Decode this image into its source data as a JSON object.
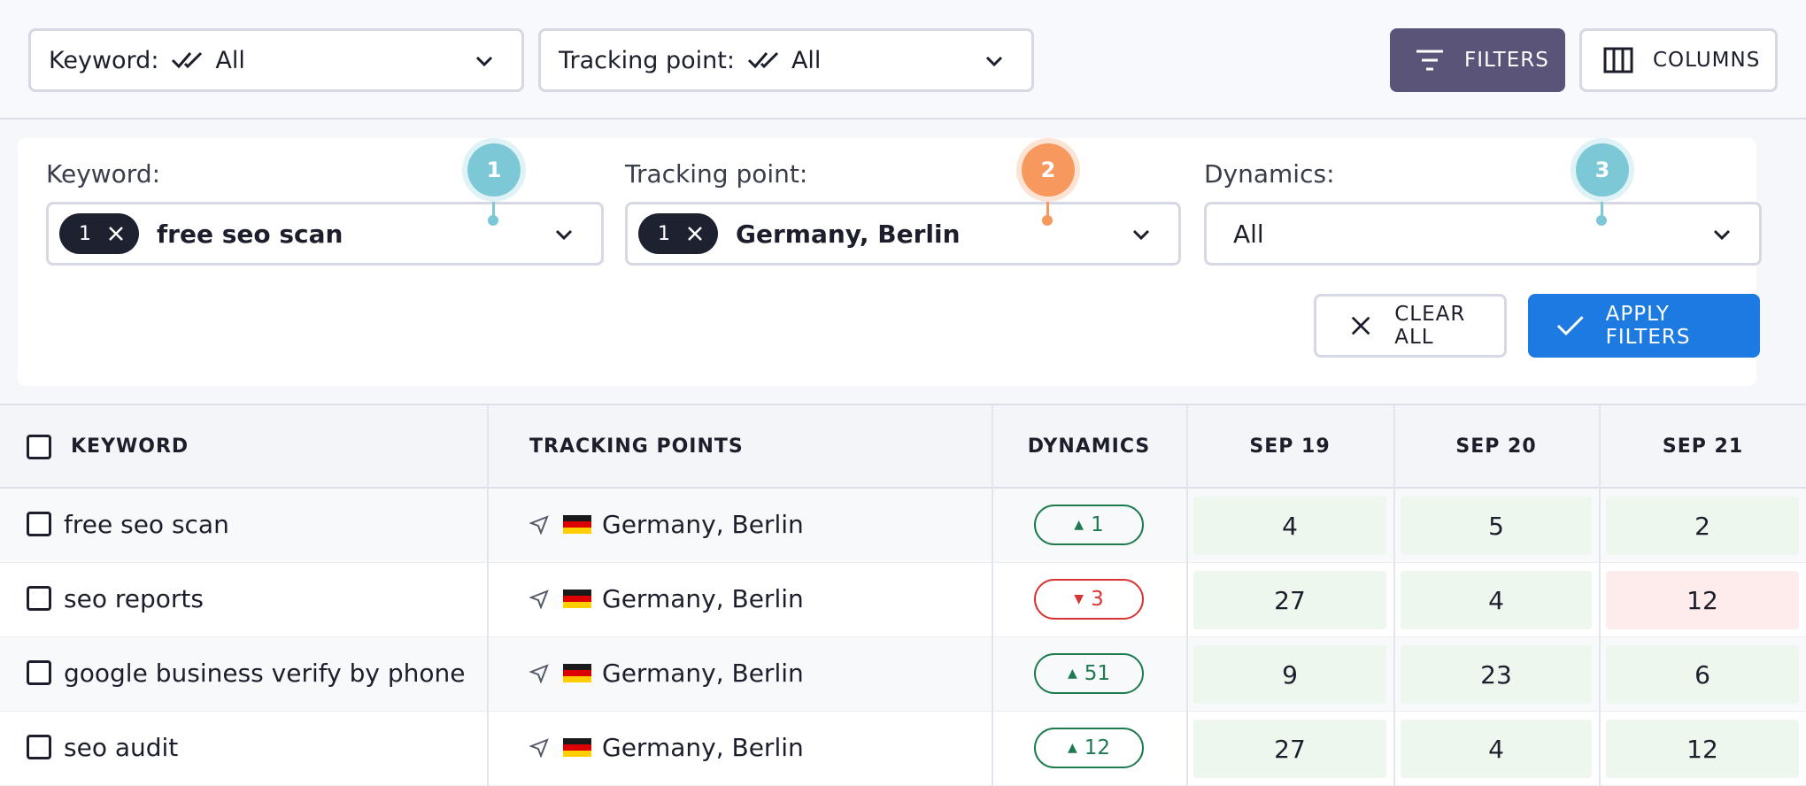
{
  "topbar": {
    "keyword_dropdown": {
      "label": "Keyword:",
      "value": "All"
    },
    "tracking_dropdown": {
      "label": "Tracking point:",
      "value": "All"
    },
    "filters_button": "FILTERS",
    "columns_button": "COLUMNS"
  },
  "filter_panel": {
    "keyword": {
      "label": "Keyword:",
      "chip_count": "1",
      "value": "free seo scan",
      "step": "1"
    },
    "tracking_point": {
      "label": "Tracking point:",
      "chip_count": "1",
      "value": "Germany, Berlin",
      "step": "2"
    },
    "dynamics": {
      "label": "Dynamics:",
      "value": "All",
      "step": "3"
    },
    "clear_all": "CLEAR ALL",
    "apply_filters": "APPLY FILTERS"
  },
  "table": {
    "headers": {
      "keyword": "KEYWORD",
      "tracking_points": "TRACKING POINTS",
      "dynamics": "DYNAMICS",
      "d1": "SEP 19",
      "d2": "SEP 20",
      "d3": "SEP 21"
    },
    "rows": [
      {
        "keyword": "free seo scan",
        "tracking_point": "Germany, Berlin",
        "dynamics": "1",
        "trend": "up",
        "d1": "4",
        "d2": "5",
        "d3": "2"
      },
      {
        "keyword": "seo reports",
        "tracking_point": "Germany, Berlin",
        "dynamics": "3",
        "trend": "down",
        "d1": "27",
        "d2": "4",
        "d3": "12"
      },
      {
        "keyword": "google business verify by phone",
        "tracking_point": "Germany, Berlin",
        "dynamics": "51",
        "trend": "up",
        "d1": "9",
        "d2": "23",
        "d3": "6"
      },
      {
        "keyword": "seo audit",
        "tracking_point": "Germany, Berlin",
        "dynamics": "12",
        "trend": "up",
        "d1": "27",
        "d2": "4",
        "d3": "12"
      }
    ]
  },
  "colors": {
    "accent_purple": "#5a5479",
    "apply_blue": "#1d7ae0",
    "step1": "#7cc8d6",
    "step2": "#f7995e",
    "step3": "#7cc8d6",
    "cell_green": "#edf7ee",
    "cell_red": "#fdeceb"
  }
}
